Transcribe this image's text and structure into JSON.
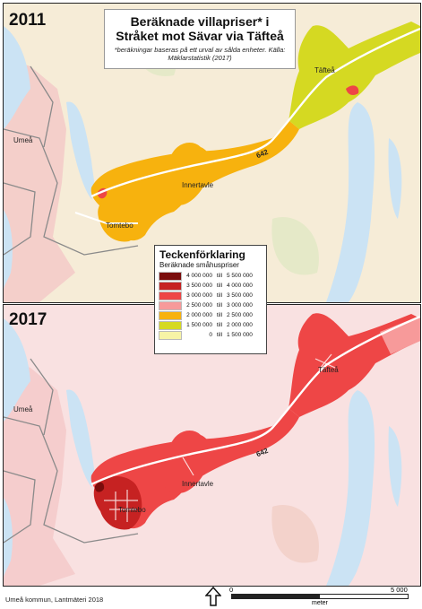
{
  "title": {
    "line1": "Beräknade villapriser* i",
    "line2": "Stråket mot Sävar via Täfteå",
    "note": "*beräkningar baseras på ett urval av sålda enheter. Källa: Mäklarstatistik (2017)"
  },
  "maps": [
    {
      "year": "2011",
      "corridor_class": "2 000 000 – 2 500 000",
      "tafte_class": "1 500 000 – 2 000 000"
    },
    {
      "year": "2017",
      "corridor_class": "3 000 000 – 3 500 000",
      "tomtebo_class": "3 500 000 – 4 000 000"
    }
  ],
  "places": {
    "umea": "Umeå",
    "tafte": "Täfteå",
    "innertavle": "Innertavle",
    "tomtebo": "Tomtebo",
    "road": "642"
  },
  "legend": {
    "title": "Teckenförklaring",
    "subtitle": "Beräknade småhuspriser",
    "sep": "till",
    "items": [
      {
        "from": "4 000 000",
        "to": "5 500 000",
        "color": "#7a0c0c"
      },
      {
        "from": "3 500 000",
        "to": "4 000 000",
        "color": "#c62222"
      },
      {
        "from": "3 000 000",
        "to": "3 500 000",
        "color": "#ee4646"
      },
      {
        "from": "2 500 000",
        "to": "3 000 000",
        "color": "#f79a9a"
      },
      {
        "from": "2 000 000",
        "to": "2 500 000",
        "color": "#f7b20e"
      },
      {
        "from": "1 500 000",
        "to": "2 000 000",
        "color": "#d5d922"
      },
      {
        "from": "0",
        "to": "1 500 000",
        "color": "#f7f4a6"
      }
    ]
  },
  "footer": {
    "credit": "Umeå kommun, Lantmäteri 2018",
    "scale_start": "0",
    "scale_end": "5 000",
    "scale_unit": "meter"
  },
  "colors": {
    "water": "#cbe3f4",
    "land_2011": "#f6ecd7",
    "land_2017": "#f9e1e1",
    "urban": "#f3c6c6",
    "road": "#ffffff"
  }
}
